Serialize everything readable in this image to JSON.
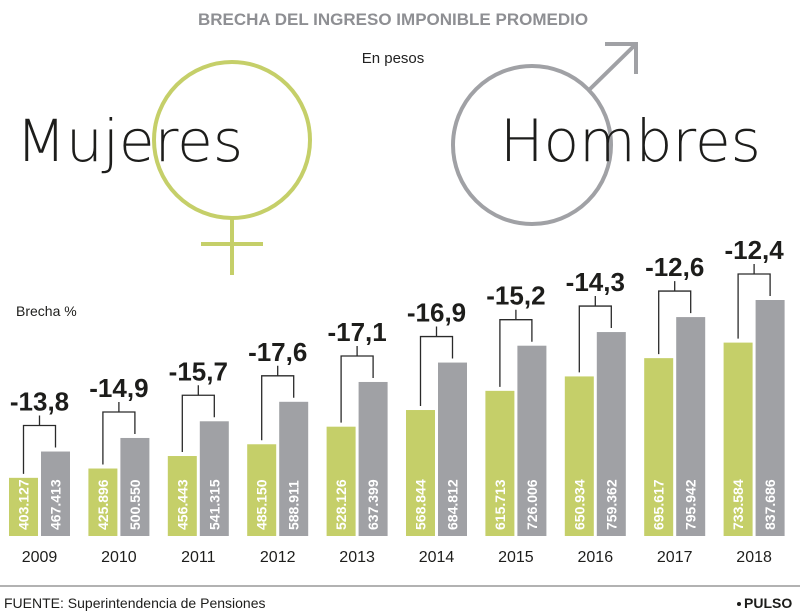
{
  "title": "BRECHA DEL INGRESO IMPONIBLE PROMEDIO",
  "subtitle": "En pesos",
  "labels": {
    "women": "Mujeres",
    "men": "Hombres",
    "gap": "Brecha %"
  },
  "source": "FUENTE: Superintendencia de Pensiones",
  "brand": "PULSO",
  "colors": {
    "women": "#c5cf69",
    "men": "#a0a1a5",
    "title": "#8e8f93"
  },
  "chart_data": {
    "type": "bar",
    "title": "BRECHA DEL INGRESO IMPONIBLE PROMEDIO",
    "subtitle": "En pesos",
    "categories": [
      "2009",
      "2010",
      "2011",
      "2012",
      "2013",
      "2014",
      "2015",
      "2016",
      "2017",
      "2018"
    ],
    "series": [
      {
        "name": "Mujeres",
        "values": [
          403127,
          425896,
          456443,
          485150,
          528126,
          568844,
          615713,
          650934,
          695617,
          733584
        ],
        "labels": [
          "403.127",
          "425.896",
          "456.443",
          "485.150",
          "528.126",
          "568.844",
          "615.713",
          "650.934",
          "695.617",
          "733.584"
        ]
      },
      {
        "name": "Hombres",
        "values": [
          467413,
          500550,
          541315,
          588911,
          637399,
          684812,
          726006,
          759362,
          795942,
          837686
        ],
        "labels": [
          "467.413",
          "500.550",
          "541.315",
          "588.911",
          "637.399",
          "684.812",
          "726.006",
          "759.362",
          "795.942",
          "837.686"
        ]
      }
    ],
    "gap_percent": [
      -13.8,
      -14.9,
      -15.7,
      -17.6,
      -17.1,
      -16.9,
      -15.2,
      -14.3,
      -12.6,
      -12.4
    ],
    "gap_labels": [
      "-13,8",
      "-14,9",
      "-15,7",
      "-17,6",
      "-17,1",
      "-16,9",
      "-15,2",
      "-14,3",
      "-12,6",
      "-12,4"
    ],
    "grid": false,
    "legend": "top"
  }
}
